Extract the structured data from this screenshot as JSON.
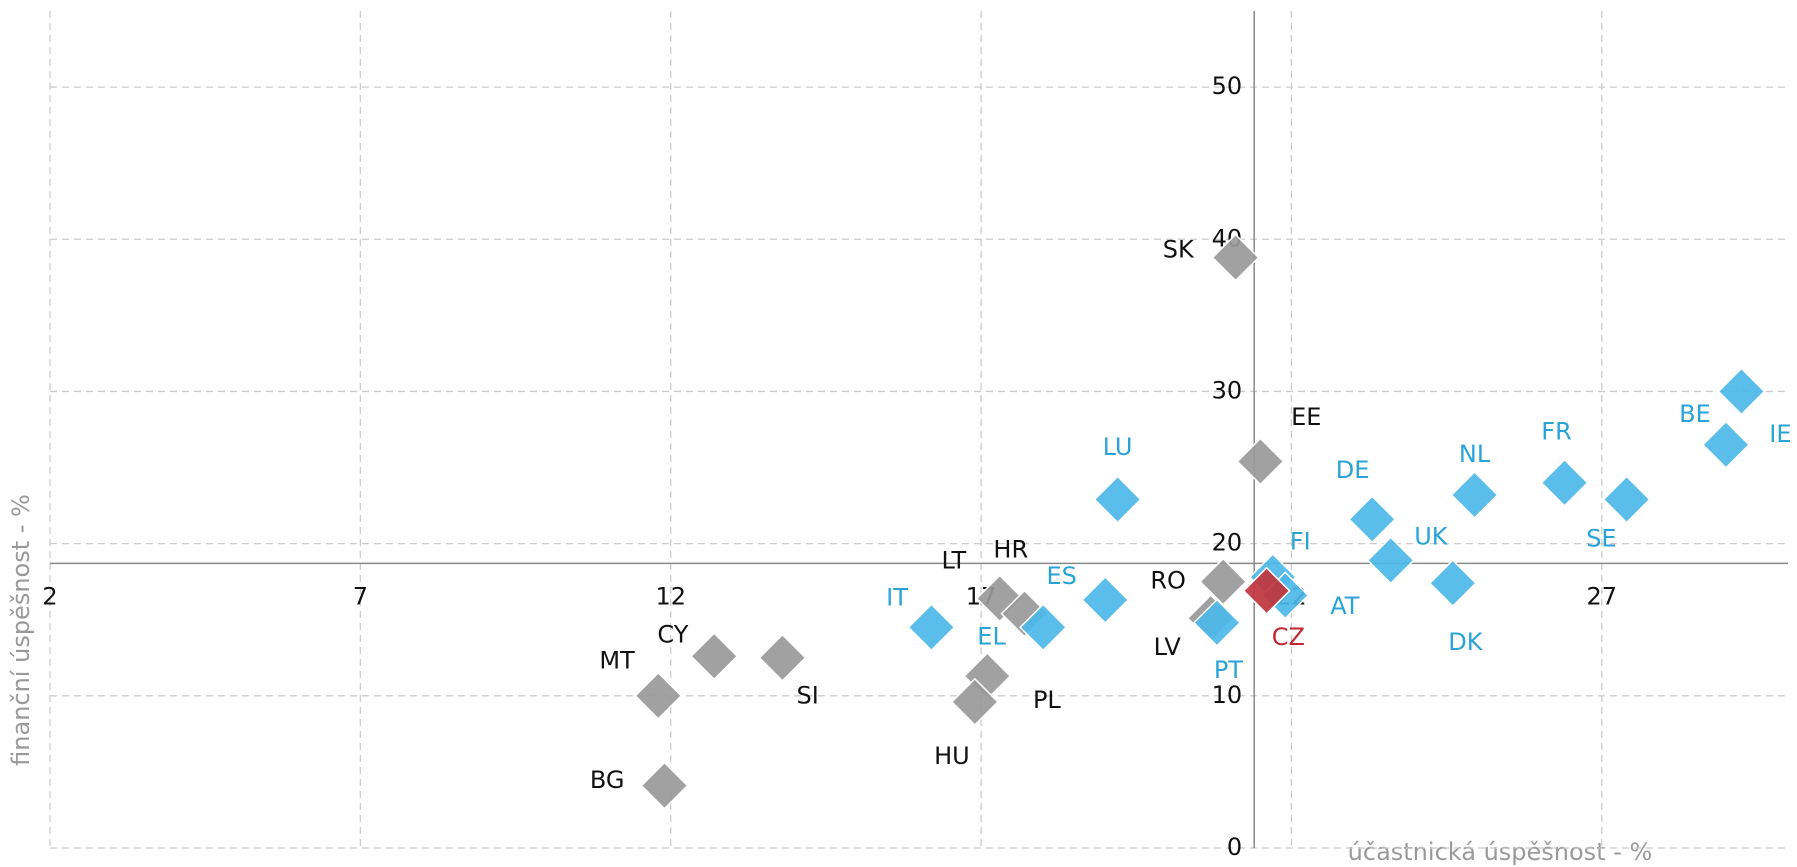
{
  "chart_data": {
    "type": "scatter",
    "x_label": "účastnická úspěšnost - %",
    "y_label": "finanční úspěšnost - %",
    "xlim": [
      2,
      30
    ],
    "xticks": [
      2,
      7,
      12,
      17,
      22,
      27
    ],
    "ylim": [
      0,
      55
    ],
    "yticks": [
      0,
      10,
      20,
      30,
      40,
      50
    ],
    "x_axis_at_y": 18.7,
    "y_axis_at_x": 21.4,
    "grid": true,
    "series": [
      {
        "color": "#999999",
        "label_color": "#111111",
        "labels": [
          "SK",
          "EE",
          "RO",
          "LV",
          "LT",
          "HR",
          "PL",
          "HU",
          "CY",
          "SI",
          "MT",
          "BG"
        ],
        "x": [
          21.1,
          21.5,
          20.9,
          20.7,
          17.3,
          17.7,
          17.1,
          16.9,
          12.7,
          13.8,
          11.8,
          11.9
        ],
        "values": [
          38.8,
          25.4,
          17.5,
          15.1,
          16.4,
          15.4,
          11.3,
          9.6,
          12.6,
          12.5,
          10.0,
          4.1
        ]
      },
      {
        "color": "#4db8e8",
        "label_color": "#29a3d8",
        "labels": [
          "IT",
          "EL",
          "ES",
          "LU",
          "PT",
          "FI",
          "AT",
          "DE",
          "UK",
          "DK",
          "NL",
          "FR",
          "SE",
          "BE",
          "IE"
        ],
        "x": [
          16.2,
          18.0,
          19.0,
          19.2,
          20.8,
          21.7,
          21.9,
          23.3,
          23.6,
          24.6,
          24.95,
          26.4,
          27.4,
          29.0,
          29.25
        ],
        "values": [
          14.5,
          14.5,
          16.3,
          22.9,
          14.8,
          17.8,
          16.6,
          21.6,
          18.9,
          17.4,
          23.2,
          24.0,
          22.9,
          26.5,
          30.0
        ]
      },
      {
        "color": "#c0343c",
        "label_color": "#c0282f",
        "labels": [
          "CZ"
        ],
        "x": [
          21.6
        ],
        "values": [
          16.9
        ]
      }
    ]
  }
}
